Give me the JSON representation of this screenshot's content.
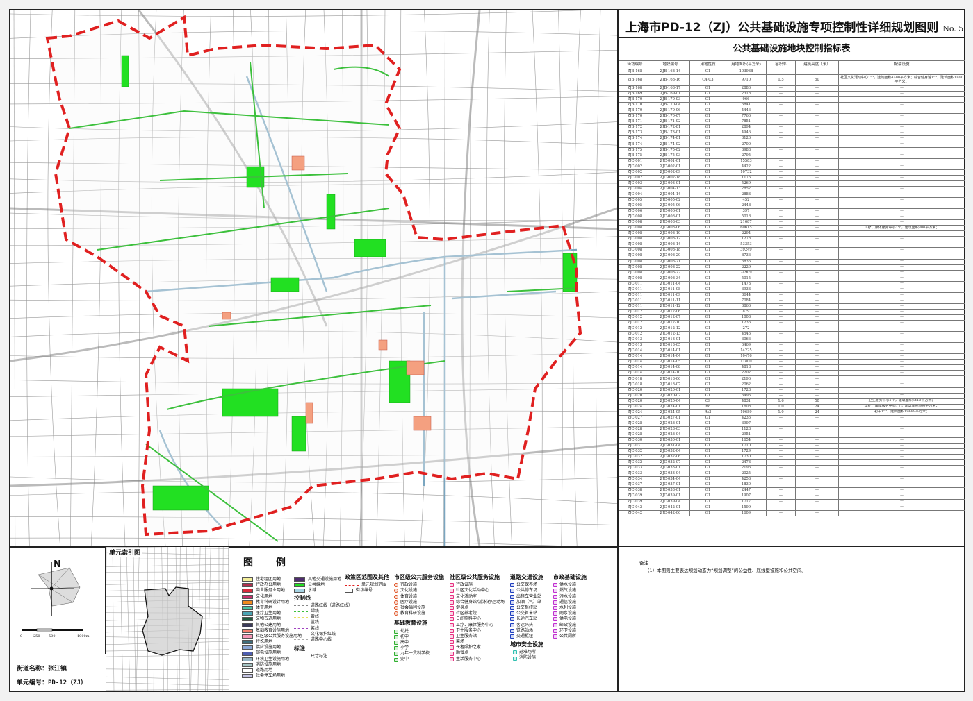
{
  "title": "上海市PD-12（ZJ）公共基础设施专项控制性详细规划图则",
  "sheet_no": "No. 5",
  "table": {
    "title": "公共基础设施地块控制指标表",
    "headers": [
      "街坊编号",
      "地块编号",
      "用地性质",
      "用地面积(平方米)",
      "容积率",
      "建筑高度（米）",
      "配套设施"
    ],
    "rows": [
      [
        "ZJB-168",
        "ZJB-168-14",
        "G1",
        "103938",
        "—",
        "—",
        "—"
      ],
      [
        "ZJB-168",
        "ZJB-168-16",
        "C4,C3",
        "9710",
        "1.5",
        "50",
        "社区文化活动中心1个，建筑面积4500平方米；综合健身馆1个，建筑面积1800平方米；"
      ],
      [
        "ZJB-168",
        "ZJB-168-17",
        "G1",
        "2886",
        "—",
        "—",
        "—"
      ],
      [
        "ZJB-169",
        "ZJB-169-01",
        "G1",
        "2318",
        "—",
        "—",
        "—"
      ],
      [
        "ZJB-170",
        "ZJB-170-03",
        "G1",
        "966",
        "—",
        "—",
        "—"
      ],
      [
        "ZJB-170",
        "ZJB-170-04",
        "G1",
        "5841",
        "—",
        "—",
        "—"
      ],
      [
        "ZJB-170",
        "ZJB-170-06",
        "G1",
        "4446",
        "—",
        "—",
        "—"
      ],
      [
        "ZJB-170",
        "ZJB-170-07",
        "G1",
        "7766",
        "—",
        "—",
        "—"
      ],
      [
        "ZJB-171",
        "ZJB-171-02",
        "G1",
        "7851",
        "—",
        "—",
        "—"
      ],
      [
        "ZJB-172",
        "ZJB-172-01",
        "G1",
        "2894",
        "—",
        "—",
        "—"
      ],
      [
        "ZJB-173",
        "ZJB-173-01",
        "G1",
        "4946",
        "—",
        "—",
        "—"
      ],
      [
        "ZJB-174",
        "ZJB-174-01",
        "G1",
        "3126",
        "—",
        "—",
        "—"
      ],
      [
        "ZJB-174",
        "ZJB-174-02",
        "G1",
        "2700",
        "—",
        "—",
        "—"
      ],
      [
        "ZJB-175",
        "ZJB-175-02",
        "G1",
        "3988",
        "—",
        "—",
        "—"
      ],
      [
        "ZJB-175",
        "ZJB-175-03",
        "G1",
        "2795",
        "—",
        "—",
        "—"
      ],
      [
        "ZJC-001",
        "ZJC-001-01",
        "G1",
        "15583",
        "—",
        "—",
        "—"
      ],
      [
        "ZJC-002",
        "ZJC-002-01",
        "G1",
        "4422",
        "—",
        "—",
        "—"
      ],
      [
        "ZJC-002",
        "ZJC-002-09",
        "G1",
        "10732",
        "—",
        "—",
        "—"
      ],
      [
        "ZJC-002",
        "ZJC-002-18",
        "G1",
        "1175",
        "—",
        "—",
        "—"
      ],
      [
        "ZJC-003",
        "ZJC-003-01",
        "G1",
        "5269",
        "—",
        "—",
        "—"
      ],
      [
        "ZJC-004",
        "ZJC-004-13",
        "G1",
        "2852",
        "—",
        "—",
        "—"
      ],
      [
        "ZJC-004",
        "ZJC-004-14",
        "G1",
        "2883",
        "—",
        "—",
        "—"
      ],
      [
        "ZJC-005",
        "ZJC-005-02",
        "G1",
        "452",
        "—",
        "—",
        "—"
      ],
      [
        "ZJC-005",
        "ZJC-005-06",
        "G1",
        "2448",
        "—",
        "—",
        "—"
      ],
      [
        "ZJC-006",
        "ZJC-006-01",
        "G1",
        "397",
        "—",
        "—",
        "—"
      ],
      [
        "ZJC-008",
        "ZJC-008-01",
        "G1",
        "5018",
        "—",
        "—",
        "—"
      ],
      [
        "ZJC-008",
        "ZJC-008-03",
        "G1",
        "21687",
        "—",
        "—",
        "—"
      ],
      [
        "ZJC-008",
        "ZJC-008-06",
        "G1",
        "60615",
        "—",
        "—",
        "工疗、康体服务中心1个，建筑面积800平方米；"
      ],
      [
        "ZJC-008",
        "ZJC-008-10",
        "G1",
        "2294",
        "—",
        "—",
        "—"
      ],
      [
        "ZJC-008",
        "ZJC-008-12",
        "G1",
        "1278",
        "—",
        "—",
        "—"
      ],
      [
        "ZJC-008",
        "ZJC-008-14",
        "G1",
        "53353",
        "—",
        "—",
        "—"
      ],
      [
        "ZJC-008",
        "ZJC-008-18",
        "G1",
        "39249",
        "—",
        "—",
        "—"
      ],
      [
        "ZJC-008",
        "ZJC-008-20",
        "G1",
        "8736",
        "—",
        "—",
        "—"
      ],
      [
        "ZJC-008",
        "ZJC-008-21",
        "G1",
        "3835",
        "—",
        "—",
        "—"
      ],
      [
        "ZJC-008",
        "ZJC-008-22",
        "G1",
        "2229",
        "—",
        "—",
        "—"
      ],
      [
        "ZJC-008",
        "ZJC-008-27",
        "G1",
        "24909",
        "—",
        "—",
        "—"
      ],
      [
        "ZJC-008",
        "ZJC-008-34",
        "G1",
        "5015",
        "—",
        "—",
        "—"
      ],
      [
        "ZJC-011",
        "ZJC-011-04",
        "G1",
        "1473",
        "—",
        "—",
        "—"
      ],
      [
        "ZJC-011",
        "ZJC-011-08",
        "G1",
        "3933",
        "—",
        "—",
        "—"
      ],
      [
        "ZJC-011",
        "ZJC-011-09",
        "G1",
        "3644",
        "—",
        "—",
        "—"
      ],
      [
        "ZJC-011",
        "ZJC-011-11",
        "G1",
        "7084",
        "—",
        "—",
        "—"
      ],
      [
        "ZJC-011",
        "ZJC-011-12",
        "G1",
        "3866",
        "—",
        "—",
        "—"
      ],
      [
        "ZJC-012",
        "ZJC-012-06",
        "G1",
        "879",
        "—",
        "—",
        "—"
      ],
      [
        "ZJC-012",
        "ZJC-012-07",
        "G1",
        "1003",
        "—",
        "—",
        "—"
      ],
      [
        "ZJC-012",
        "ZJC-012-10",
        "G1",
        "1236",
        "—",
        "—",
        "—"
      ],
      [
        "ZJC-012",
        "ZJC-012-12",
        "G1",
        "272",
        "—",
        "—",
        "—"
      ],
      [
        "ZJC-012",
        "ZJC-012-13",
        "G1",
        "4545",
        "—",
        "—",
        "—"
      ],
      [
        "ZJC-013",
        "ZJC-013-01",
        "G1",
        "3066",
        "—",
        "—",
        "—"
      ],
      [
        "ZJC-013",
        "ZJC-013-05",
        "G1",
        "6469",
        "—",
        "—",
        "—"
      ],
      [
        "ZJC-014",
        "ZJC-014-01",
        "G1",
        "14225",
        "—",
        "—",
        "—"
      ],
      [
        "ZJC-014",
        "ZJC-014-04",
        "G1",
        "10476",
        "—",
        "—",
        "—"
      ],
      [
        "ZJC-014",
        "ZJC-014-05",
        "G1",
        "11800",
        "—",
        "—",
        "—"
      ],
      [
        "ZJC-014",
        "ZJC-014-08",
        "G1",
        "4818",
        "—",
        "—",
        "—"
      ],
      [
        "ZJC-014",
        "ZJC-014-10",
        "G1",
        "2202",
        "—",
        "—",
        "—"
      ],
      [
        "ZJC-018",
        "ZJC-018-06",
        "G1",
        "2196",
        "—",
        "—",
        "—"
      ],
      [
        "ZJC-018",
        "ZJC-018-07",
        "G1",
        "2062",
        "—",
        "—",
        "—"
      ],
      [
        "ZJC-020",
        "ZJC-020-01",
        "G1",
        "1728",
        "—",
        "—",
        "—"
      ],
      [
        "ZJC-020",
        "ZJC-020-02",
        "G1",
        "3495",
        "—",
        "—",
        "—"
      ],
      [
        "ZJC-020",
        "ZJC-020-04",
        "C9",
        "4831",
        "1.6",
        "50",
        "卫生服务中心1个，建筑面积6410平方米；"
      ],
      [
        "ZJC-024",
        "ZJC-024-01",
        "Rc",
        "1608",
        "1.0",
        "24",
        "工疗、康体服务中心1个，建筑面积800平方米；"
      ],
      [
        "ZJC-024",
        "ZJC-024-05",
        "Rs3",
        "19689",
        "1.0",
        "24",
        "初中1个，建筑面积19689平方米；"
      ],
      [
        "ZJC-027",
        "ZJC-027-01",
        "G1",
        "4235",
        "—",
        "—",
        "—"
      ],
      [
        "ZJC-028",
        "ZJC-028-01",
        "G1",
        "3997",
        "—",
        "—",
        "—"
      ],
      [
        "ZJC-028",
        "ZJC-028-03",
        "G1",
        "1128",
        "—",
        "—",
        "—"
      ],
      [
        "ZJC-028",
        "ZJC-028-04",
        "G1",
        "2951",
        "—",
        "—",
        "—"
      ],
      [
        "ZJC-030",
        "ZJC-030-01",
        "G1",
        "1654",
        "—",
        "—",
        "—"
      ],
      [
        "ZJC-031",
        "ZJC-031-04",
        "G1",
        "1710",
        "—",
        "—",
        "—"
      ],
      [
        "ZJC-032",
        "ZJC-032-04",
        "G1",
        "1729",
        "—",
        "—",
        "—"
      ],
      [
        "ZJC-032",
        "ZJC-032-06",
        "G1",
        "1730",
        "—",
        "—",
        "—"
      ],
      [
        "ZJC-032",
        "ZJC-032-07",
        "G1",
        "2473",
        "—",
        "—",
        "—"
      ],
      [
        "ZJC-033",
        "ZJC-033-01",
        "G1",
        "2196",
        "—",
        "—",
        "—"
      ],
      [
        "ZJC-033",
        "ZJC-033-04",
        "G1",
        "2025",
        "—",
        "—",
        "—"
      ],
      [
        "ZJC-034",
        "ZJC-034-04",
        "G1",
        "4253",
        "—",
        "—",
        "—"
      ],
      [
        "ZJC-037",
        "ZJC-037-01",
        "G1",
        "1830",
        "—",
        "—",
        "—"
      ],
      [
        "ZJC-038",
        "ZJC-038-01",
        "G1",
        "2447",
        "—",
        "—",
        "—"
      ],
      [
        "ZJC-039",
        "ZJC-039-01",
        "G1",
        "1907",
        "—",
        "—",
        "—"
      ],
      [
        "ZJC-039",
        "ZJC-039-04",
        "G1",
        "1717",
        "—",
        "—",
        "—"
      ],
      [
        "ZJC-042",
        "ZJC-042-01",
        "G1",
        "1599",
        "—",
        "—",
        "—"
      ],
      [
        "ZJC-042",
        "ZJC-042-06",
        "G1",
        "1609",
        "—",
        "—",
        "—"
      ]
    ]
  },
  "remarks": {
    "heading": "备注",
    "items": [
      "（1）本图则主要表达规划动态为“规划调整”的公益性、底线型设施和公共空间。"
    ]
  },
  "compass": {
    "north": "N",
    "scale_labels": [
      "0",
      "250",
      "500",
      "1000m"
    ]
  },
  "index_map": {
    "title": "单元索引图"
  },
  "unit_info": {
    "street_label": "街道名称：张江镇",
    "unit_label": "单元编号：PD-12（ZJ）"
  },
  "legend": {
    "title": "图 例",
    "land_use": [
      {
        "label": "住宅组团用地",
        "color": "#f3ee9a"
      },
      {
        "label": "行政办公用地",
        "color": "#b0304e"
      },
      {
        "label": "商业服务业用地",
        "color": "#d82a3c"
      },
      {
        "label": "文化用地",
        "color": "#c8306e"
      },
      {
        "label": "教育科研设计用地",
        "color": "#f28a1e"
      },
      {
        "label": "体育用地",
        "color": "#4cc4a4"
      },
      {
        "label": "医疗卫生用地",
        "color": "#4ba4b4"
      },
      {
        "label": "文物古迹用地",
        "color": "#1f5a3e"
      },
      {
        "label": "其他公建用地",
        "color": "#3c3c5a"
      },
      {
        "label": "基础教育设施用地",
        "color": "#f48070"
      },
      {
        "label": "社区级公共服务设施用地",
        "color": "#f498b8"
      },
      {
        "label": "特殊用地",
        "color": "#3e6e7c"
      },
      {
        "label": "供应设施用地",
        "color": "#8aa6d6"
      },
      {
        "label": "邮电设施用地",
        "color": "#4e5eb0"
      },
      {
        "label": "环境卫生设施用地",
        "color": "#94b4c4"
      },
      {
        "label": "消防设施用地",
        "color": "#a4c4c4"
      },
      {
        "label": "道路用地",
        "color": "#ffffff"
      },
      {
        "label": "社会停车场用地",
        "color": "#c4c4e4"
      }
    ],
    "land_use_2": [
      {
        "label": "其他交通设施用地",
        "color": "#4e2c6e"
      },
      {
        "label": "公共绿地",
        "color": "#22e022"
      },
      {
        "label": "水域",
        "color": "#a6d4e4"
      }
    ],
    "control_lines_title": "控制线",
    "control_lines": [
      {
        "label": "道路红线（道路红线）",
        "color": "#888888"
      },
      {
        "label": "绿线",
        "color": "#3cc03c"
      },
      {
        "label": "黄线",
        "color": "#e8e060"
      },
      {
        "label": "蓝线",
        "color": "#3060e0"
      },
      {
        "label": "紫线",
        "color": "#a040c0"
      },
      {
        "label": "文化保护红线",
        "color": "#e06060"
      },
      {
        "label": "道路中心线",
        "color": "#aaaaaa"
      }
    ],
    "annotation_title": "标注",
    "annotation": [
      "尺寸标注"
    ],
    "policy_title": "政策区范围及其他",
    "policy": [
      "单元规划范围",
      "街坊编号"
    ],
    "city_title": "市区级公共服务设施",
    "city": [
      "行政设施",
      "文化设施",
      "体育设施",
      "医疗设施",
      "社会福利设施",
      "教育科研设施"
    ],
    "edu_title": "基础教育设施",
    "edu": [
      "幼托",
      "初中",
      "高中",
      "小学",
      "九年一贯制学校",
      "完中"
    ],
    "community_title": "社区级公共服务设施",
    "community": [
      "行政设施",
      "社区文化活动中心",
      "文化活动室",
      "综合健身馆/游泳池/运动场",
      "健身点",
      "社区养老院",
      "日间照料中心",
      "工疗、康体服务中心",
      "卫生服务中心",
      "卫生服务站",
      "菜场",
      "长者照护之家",
      "助餐点",
      "生活服务中心"
    ],
    "traffic_title": "道路交通设施",
    "traffic": [
      "公交保养场",
      "公共停车场",
      "出租车营业站",
      "加油（气）站",
      "公交枢纽站",
      "公交首末站",
      "长途汽车站",
      "客运码头",
      "铁路站场",
      "交通枢纽"
    ],
    "municipal_title": "市政基础设施",
    "municipal": [
      "供水设施",
      "燃气设施",
      "污水设施",
      "通信设施",
      "水利设施",
      "雨水设施",
      "供电设施",
      "邮政设施",
      "环卫设施",
      "公共厕所"
    ],
    "safety_title": "城市安全设施",
    "safety": [
      "避难场所",
      "消防设施"
    ]
  },
  "colors": {
    "boundary": "#e02020",
    "green": "#22e022",
    "road": "#9a9a9a",
    "water": "#a6c8d8",
    "community": "#e83080",
    "city": "#e05020",
    "edu": "#30b030",
    "traffic": "#2040c0",
    "municipal": "#c030d0",
    "safety": "#30c0b0"
  }
}
